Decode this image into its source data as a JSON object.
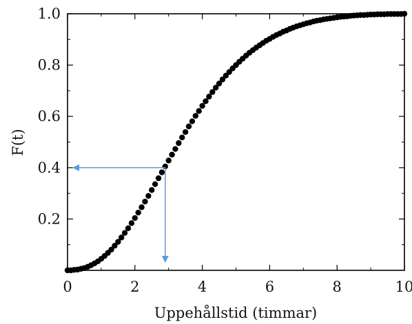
{
  "chart_data": {
    "type": "scatter",
    "title": "",
    "xlabel": "Uppehållstid (timmar)",
    "ylabel": "F(t)",
    "xlim": [
      0,
      10
    ],
    "ylim": [
      0,
      1.0
    ],
    "xticks": [
      0,
      2,
      4,
      6,
      8,
      10
    ],
    "yticks": [
      0.2,
      0.4,
      0.6,
      0.8,
      1.0
    ],
    "xtick_labels": [
      "0",
      "2",
      "4",
      "6",
      "8",
      "10"
    ],
    "ytick_labels": [
      "0.2",
      "0.4",
      "0.6",
      "0.8",
      "1.0"
    ],
    "grid": false,
    "legend": "none",
    "series": [
      {
        "x": [
          0,
          0.1,
          0.2,
          0.3,
          0.4,
          0.5,
          0.6,
          0.7,
          0.8,
          0.9,
          1.0,
          1.1,
          1.2,
          1.3,
          1.4,
          1.5,
          1.6,
          1.7,
          1.8,
          1.9,
          2.0,
          2.1,
          2.2,
          2.3,
          2.4,
          2.5,
          2.6,
          2.7,
          2.8,
          2.9,
          3.0,
          3.1,
          3.2,
          3.3,
          3.4,
          3.5,
          3.6,
          3.7,
          3.8,
          3.9,
          4.0,
          4.1,
          4.2,
          4.3,
          4.4,
          4.5,
          4.6,
          4.7,
          4.8,
          4.9,
          5.0,
          5.1,
          5.2,
          5.3,
          5.4,
          5.5,
          5.6,
          5.7,
          5.8,
          5.9,
          6.0,
          6.1,
          6.2,
          6.3,
          6.4,
          6.5,
          6.6,
          6.7,
          6.8,
          6.9,
          7.0,
          7.1,
          7.2,
          7.3,
          7.4,
          7.5,
          7.6,
          7.7,
          7.8,
          7.9,
          8.0,
          8.1,
          8.2,
          8.3,
          8.4,
          8.5,
          8.6,
          8.7,
          8.8,
          8.9,
          9.0,
          9.1,
          9.2,
          9.3,
          9.4,
          9.5,
          9.6,
          9.7,
          9.8,
          9.9,
          10.0
        ],
        "y": [
          0.0,
          0.0,
          0.002,
          0.003,
          0.006,
          0.009,
          0.014,
          0.02,
          0.027,
          0.035,
          0.045,
          0.056,
          0.068,
          0.081,
          0.096,
          0.111,
          0.128,
          0.146,
          0.164,
          0.184,
          0.204,
          0.225,
          0.246,
          0.268,
          0.29,
          0.313,
          0.336,
          0.359,
          0.382,
          0.405,
          0.428,
          0.451,
          0.473,
          0.496,
          0.518,
          0.539,
          0.561,
          0.581,
          0.602,
          0.621,
          0.641,
          0.659,
          0.677,
          0.695,
          0.712,
          0.728,
          0.744,
          0.759,
          0.773,
          0.787,
          0.8,
          0.813,
          0.825,
          0.837,
          0.848,
          0.858,
          0.868,
          0.877,
          0.886,
          0.895,
          0.902,
          0.91,
          0.917,
          0.923,
          0.93,
          0.935,
          0.941,
          0.946,
          0.951,
          0.955,
          0.959,
          0.963,
          0.966,
          0.97,
          0.973,
          0.975,
          0.978,
          0.98,
          0.982,
          0.984,
          0.986,
          0.988,
          0.989,
          0.99,
          0.992,
          0.993,
          0.994,
          0.995,
          0.995,
          0.996,
          0.997,
          0.997,
          0.998,
          0.998,
          0.998,
          0.999,
          0.999,
          0.999,
          0.999,
          0.999,
          1.0
        ]
      }
    ],
    "annotations": [
      {
        "type": "arrow-pair",
        "at_x": 2.9,
        "at_y": 0.4,
        "color": "#5b9bd5",
        "description_horizontal_to": "y-axis",
        "description_vertical_to": "x-axis"
      }
    ],
    "colors": {
      "marker": "#000000",
      "axis": "#000000",
      "arrow": "#5b9bd5"
    }
  }
}
